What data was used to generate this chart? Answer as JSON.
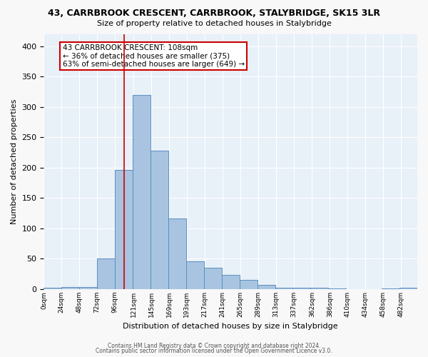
{
  "title": "43, CARRBROOK CRESCENT, CARRBROOK, STALYBRIDGE, SK15 3LR",
  "subtitle": "Size of property relative to detached houses in Stalybridge",
  "xlabel": "Distribution of detached houses by size in Stalybridge",
  "ylabel": "Number of detached properties",
  "footer_line1": "Contains HM Land Registry data © Crown copyright and database right 2024.",
  "footer_line2": "Contains public sector information licensed under the Open Government Licence v3.0.",
  "annotation_line1": "43 CARRBROOK CRESCENT: 108sqm",
  "annotation_line2": "← 36% of detached houses are smaller (375)",
  "annotation_line3": "63% of semi-detached houses are larger (649) →",
  "bar_color": "#a8c4e0",
  "bar_edge_color": "#5a8fc0",
  "background_color": "#e8f0f8",
  "fig_background": "#f8f8f8",
  "marker_color": "#cc0000",
  "marker_x": 108,
  "bin_edges": [
    0,
    24,
    48,
    72,
    96,
    120,
    144,
    168,
    192,
    216,
    240,
    264,
    288,
    312,
    336,
    360,
    384,
    408,
    432,
    456,
    480,
    504
  ],
  "bin_heights": [
    2,
    3,
    3,
    51,
    196,
    319,
    228,
    116,
    46,
    35,
    24,
    15,
    7,
    2,
    2,
    2,
    1,
    0,
    0,
    1,
    2
  ],
  "ylim": [
    0,
    420
  ],
  "yticks": [
    0,
    50,
    100,
    150,
    200,
    250,
    300,
    350,
    400
  ],
  "xtick_positions": [
    0,
    24,
    48,
    72,
    96,
    121,
    145,
    169,
    193,
    217,
    241,
    265,
    289,
    313,
    337,
    362,
    386,
    410,
    434,
    458,
    482
  ],
  "xtick_labels": [
    "0sqm",
    "24sqm",
    "48sqm",
    "72sqm",
    "96sqm",
    "121sqm",
    "145sqm",
    "169sqm",
    "193sqm",
    "217sqm",
    "241sqm",
    "265sqm",
    "289sqm",
    "313sqm",
    "337sqm",
    "362sqm",
    "386sqm",
    "410sqm",
    "434sqm",
    "458sqm",
    "482sqm"
  ]
}
